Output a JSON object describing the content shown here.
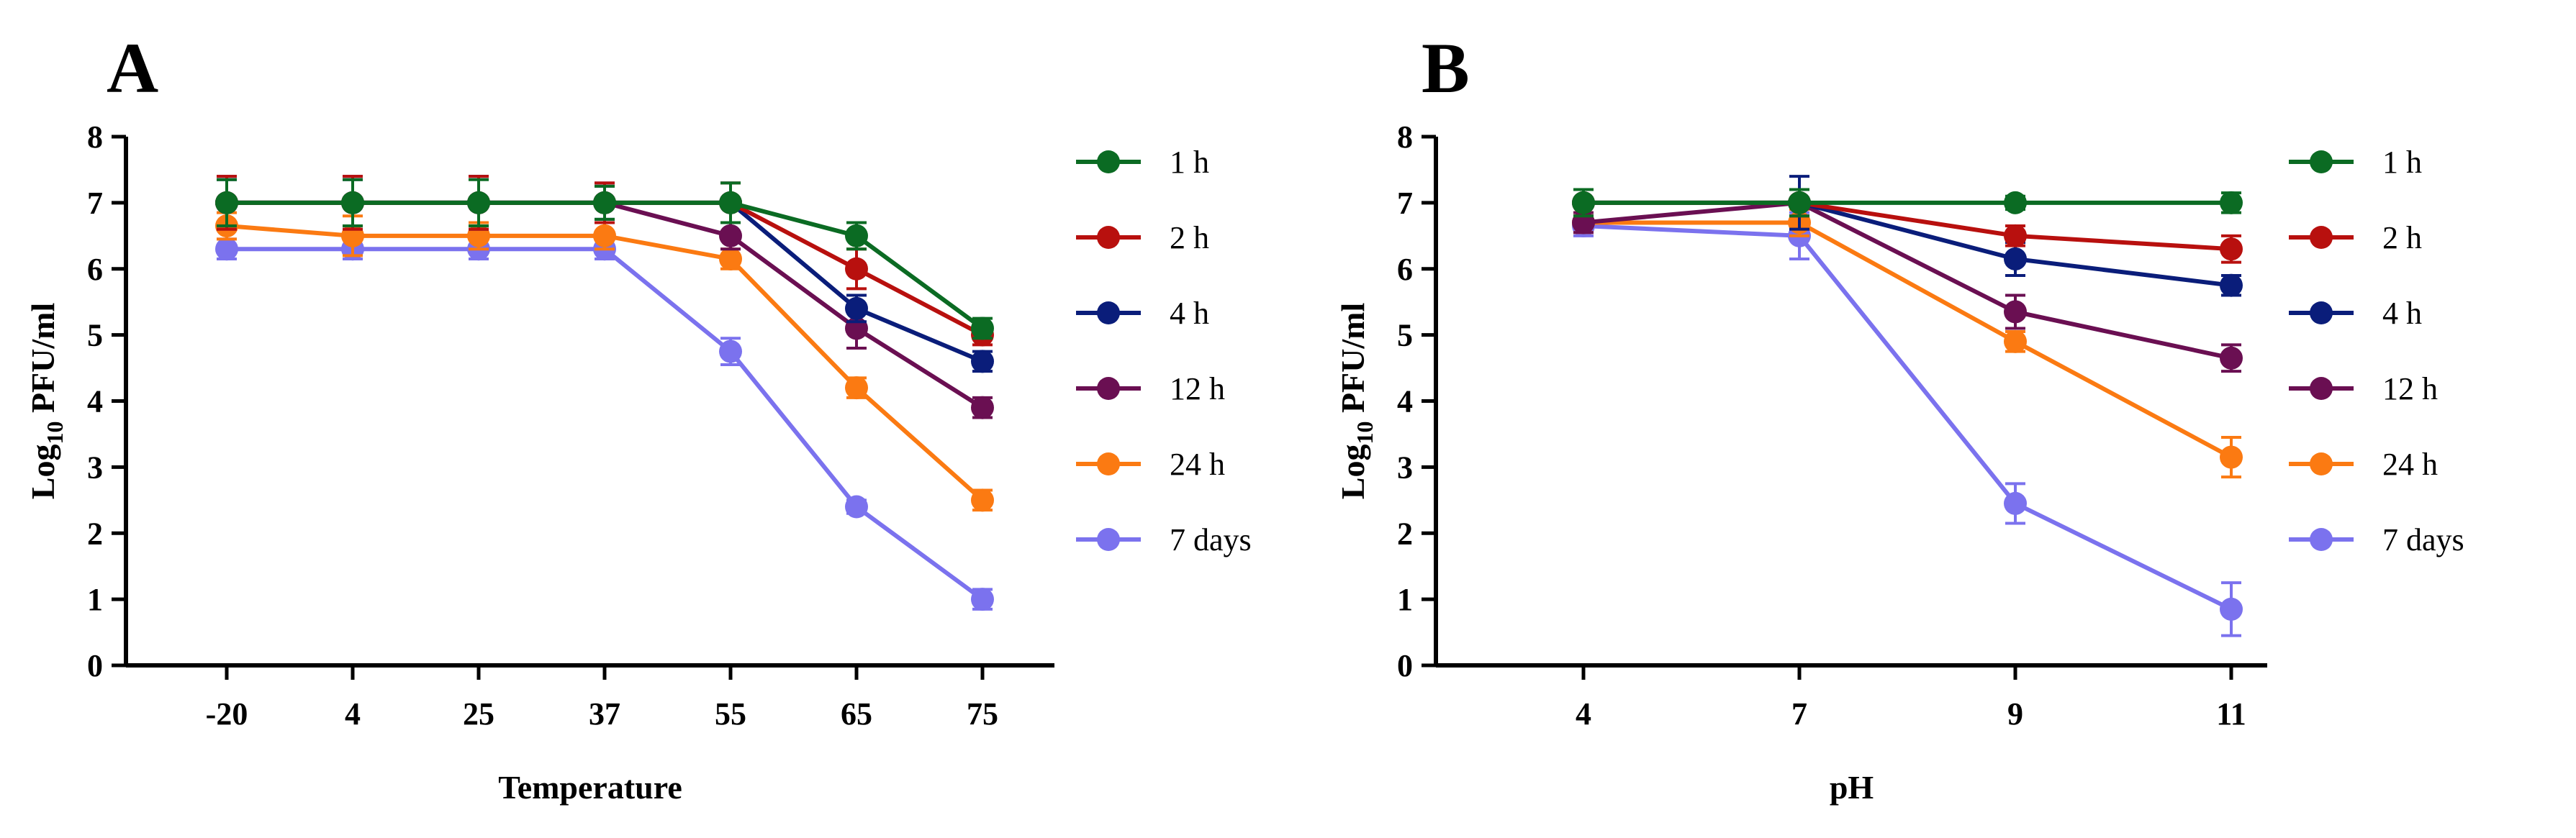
{
  "colors": {
    "1 h": "#0b6b23",
    "2 h": "#b8100e",
    "4 h": "#0a1d7a",
    "12 h": "#6a0f52",
    "24 h": "#fb7a12",
    "7 days": "#7b72ee"
  },
  "chart_data": [
    {
      "panel": "A",
      "type": "line",
      "title": "",
      "xlabel": "Temperature",
      "ylabel_main": "Log",
      "ylabel_sub": "10",
      "ylabel_rest": " PFU/ml",
      "categories": [
        "-20",
        "4",
        "25",
        "37",
        "55",
        "65",
        "75"
      ],
      "ylim": [
        0,
        8
      ],
      "yticks": [
        "0",
        "1",
        "2",
        "3",
        "4",
        "5",
        "6",
        "7",
        "8"
      ],
      "legend_position": "right",
      "series": [
        {
          "name": "1 h",
          "values": [
            7.0,
            7.0,
            7.0,
            7.0,
            7.0,
            6.5,
            5.1
          ],
          "errors": [
            0.35,
            0.35,
            0.35,
            0.25,
            0.3,
            0.2,
            0.15
          ]
        },
        {
          "name": "2 h",
          "values": [
            7.0,
            7.0,
            7.0,
            7.0,
            7.0,
            6.0,
            5.0
          ],
          "errors": [
            0.4,
            0.4,
            0.4,
            0.3,
            0.3,
            0.3,
            0.15
          ]
        },
        {
          "name": "4 h",
          "values": [
            7.0,
            7.0,
            7.0,
            7.0,
            7.0,
            5.4,
            4.6
          ],
          "errors": [
            0.35,
            0.35,
            0.4,
            0.25,
            0.3,
            0.2,
            0.15
          ]
        },
        {
          "name": "12 h",
          "values": [
            7.0,
            7.0,
            7.0,
            7.0,
            6.5,
            5.1,
            3.9
          ],
          "errors": [
            0.4,
            0.4,
            0.4,
            0.3,
            0.2,
            0.3,
            0.15
          ]
        },
        {
          "name": "24 h",
          "values": [
            6.65,
            6.5,
            6.5,
            6.5,
            6.15,
            4.2,
            2.5
          ],
          "errors": [
            0.2,
            0.3,
            0.2,
            0.2,
            0.15,
            0.15,
            0.15
          ]
        },
        {
          "name": "7 days",
          "values": [
            6.3,
            6.3,
            6.3,
            6.3,
            4.75,
            2.4,
            1.0
          ],
          "errors": [
            0.15,
            0.15,
            0.15,
            0.15,
            0.2,
            0.1,
            0.15
          ]
        }
      ]
    },
    {
      "panel": "B",
      "type": "line",
      "title": "",
      "xlabel": "pH",
      "ylabel_main": "Log",
      "ylabel_sub": "10",
      "ylabel_rest": " PFU/ml",
      "categories": [
        "4",
        "7",
        "9",
        "11"
      ],
      "ylim": [
        0,
        8
      ],
      "yticks": [
        "0",
        "1",
        "2",
        "3",
        "4",
        "5",
        "6",
        "7",
        "8"
      ],
      "legend_position": "right",
      "series": [
        {
          "name": "1 h",
          "values": [
            7.0,
            7.0,
            7.0,
            7.0
          ],
          "errors": [
            0.2,
            0.2,
            0.1,
            0.15
          ]
        },
        {
          "name": "2 h",
          "values": [
            7.0,
            7.0,
            6.5,
            6.3
          ],
          "errors": [
            0.2,
            0.2,
            0.15,
            0.2
          ]
        },
        {
          "name": "4 h",
          "values": [
            7.0,
            7.0,
            6.15,
            5.75
          ],
          "errors": [
            0.2,
            0.4,
            0.25,
            0.15
          ]
        },
        {
          "name": "12 h",
          "values": [
            6.7,
            7.0,
            5.35,
            4.65
          ],
          "errors": [
            0.15,
            0.2,
            0.25,
            0.2
          ]
        },
        {
          "name": "24 h",
          "values": [
            6.7,
            6.7,
            4.9,
            3.15
          ],
          "errors": [
            0.15,
            0.2,
            0.15,
            0.3
          ]
        },
        {
          "name": "7 days",
          "values": [
            6.65,
            6.5,
            2.45,
            0.85
          ],
          "errors": [
            0.15,
            0.35,
            0.3,
            0.4
          ]
        }
      ]
    }
  ]
}
